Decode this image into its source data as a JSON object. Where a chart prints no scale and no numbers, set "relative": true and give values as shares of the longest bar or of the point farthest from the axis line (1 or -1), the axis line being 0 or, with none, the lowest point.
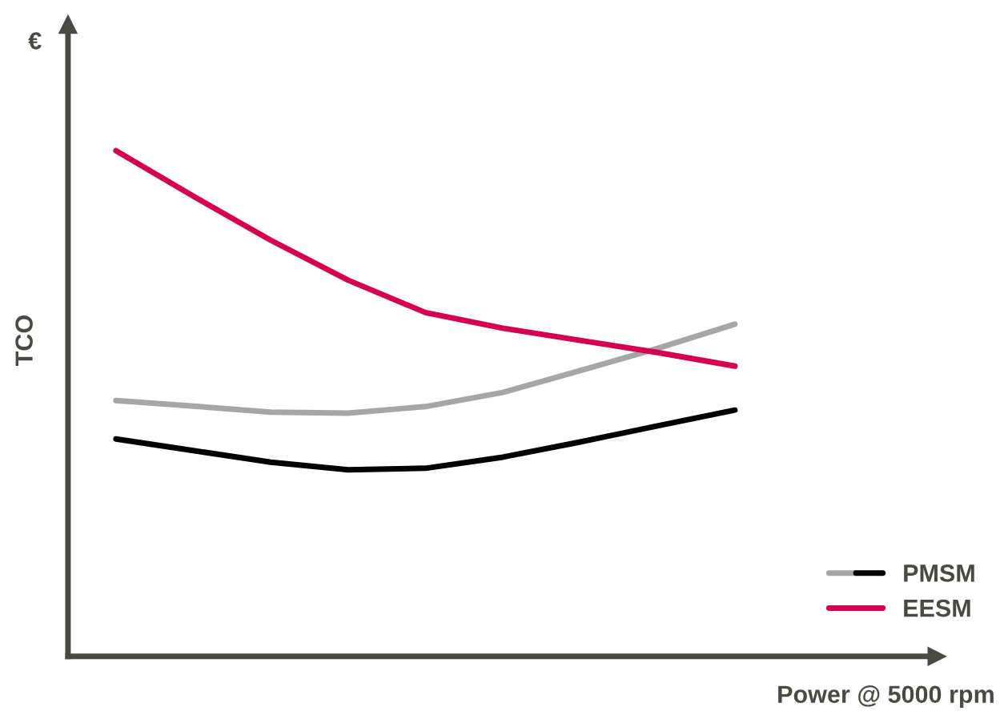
{
  "chart_data": {
    "type": "line",
    "relative": true,
    "xlabel": "Power @ 5000 rpm",
    "ylabel": "TCO",
    "annotations": [
      "€"
    ],
    "categories": [
      null,
      null,
      null,
      null,
      null,
      null,
      null,
      null,
      null
    ],
    "series": [
      {
        "name": "PMSM",
        "color": "#a6a6a6",
        "values": [
          0.506,
          0.495,
          0.483,
          0.481,
          0.494,
          0.522,
          0.565,
          0.609,
          0.657
        ]
      },
      {
        "color": "#000000",
        "values": [
          0.43,
          0.407,
          0.384,
          0.369,
          0.372,
          0.394,
          0.424,
          0.456,
          0.487
        ]
      },
      {
        "name": "EESM",
        "color": "#d4004f",
        "values": [
          1.0,
          0.91,
          0.823,
          0.744,
          0.68,
          0.649,
          0.625,
          0.601,
          0.574
        ]
      }
    ],
    "legend": "bottom right",
    "marker": "none",
    "line_style": "solid"
  }
}
